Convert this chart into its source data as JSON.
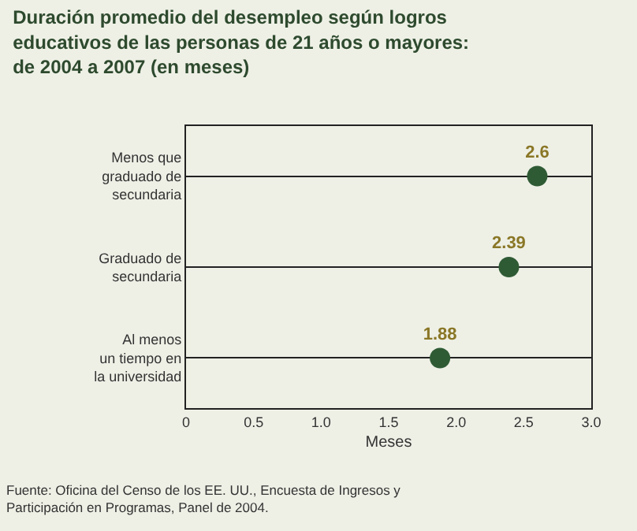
{
  "chart_data": {
    "type": "scatter",
    "title": "Duración promedio del desempleo según logros\neducativos de las personas de 21 años o mayores:\nde 2004 a 2007 (en meses)",
    "xlabel": "Meses",
    "categories": [
      "Menos que\ngraduado de\nsecundaria",
      "Graduado de\nsecundaria",
      "Al menos\nun tiempo en\nla universidad"
    ],
    "series": [
      {
        "color": "#2f5b34",
        "values": [
          2.6,
          2.39,
          1.88
        ]
      }
    ],
    "data_labels": true,
    "marker": "circle",
    "grid": "y",
    "legend": false,
    "xlim": [
      0,
      3.0
    ],
    "orientation": "horizontal",
    "xticks": [
      {
        "value": 0,
        "label": "0"
      },
      {
        "value": 0.5,
        "label": "0.5"
      },
      {
        "value": 1.0,
        "label": "1.0"
      },
      {
        "value": 1.5,
        "label": "1.5"
      },
      {
        "value": 2.0,
        "label": "2.0"
      },
      {
        "value": 2.5,
        "label": "2.5"
      },
      {
        "value": 3.0,
        "label": "3.0"
      }
    ],
    "annotations": [
      "Fuente: Oficina del Censo de los EE. UU., Encuesta de Ingresos y\nParticipación en Programas, Panel de 2004."
    ]
  }
}
